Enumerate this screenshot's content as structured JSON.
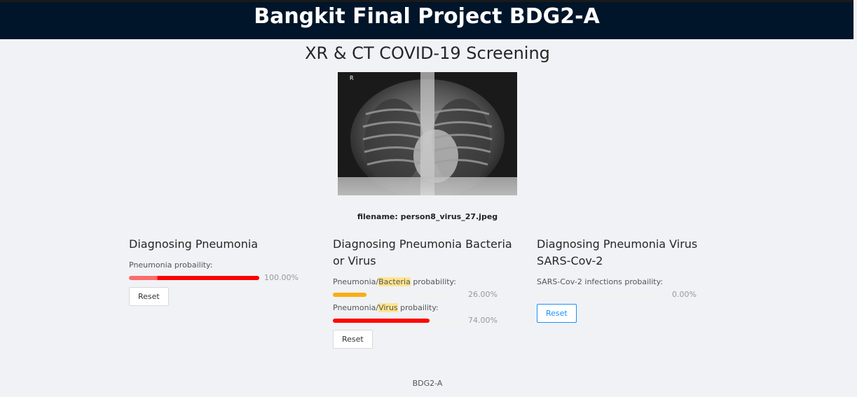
{
  "header": {
    "title": "Bangkit Final Project BDG2-A"
  },
  "main": {
    "subtitle": "XR & CT COVID-19 Screening",
    "filename_label": "filename: person8_virus_27.jpeg",
    "xray_marker": "R"
  },
  "panels": [
    {
      "title": "Diagnosing Pneumonia",
      "probabilities": [
        {
          "label_prefix": "Pneumonia probaility:",
          "label_highlight": "",
          "label_suffix": "",
          "percent_text": "100.00%",
          "value": 1.0,
          "color": "#ff0000"
        }
      ],
      "reset_label": "Reset"
    },
    {
      "title": "Diagnosing Pneumonia Bacteria or Virus",
      "probabilities": [
        {
          "label_prefix": "Pneumonia/",
          "label_highlight": "Bacteria",
          "label_suffix": " probability:",
          "percent_text": "26.00%",
          "value": 0.26,
          "color": "#faad14"
        },
        {
          "label_prefix": "Pneumonia/",
          "label_highlight": "Virus",
          "label_suffix": " probaility:",
          "percent_text": "74.00%",
          "value": 0.74,
          "color": "#ff0000"
        }
      ],
      "reset_label": "Reset"
    },
    {
      "title": "Diagnosing Pneumonia Virus SARS-Cov-2",
      "probabilities": [
        {
          "label_prefix": "SARS-Cov-2 infections probaility:",
          "label_highlight": "",
          "label_suffix": "",
          "percent_text": "0.00%",
          "value": 0.0,
          "color": "#ff0000"
        }
      ],
      "reset_label": "Reset"
    }
  ],
  "footer": {
    "text": "BDG2-A"
  }
}
